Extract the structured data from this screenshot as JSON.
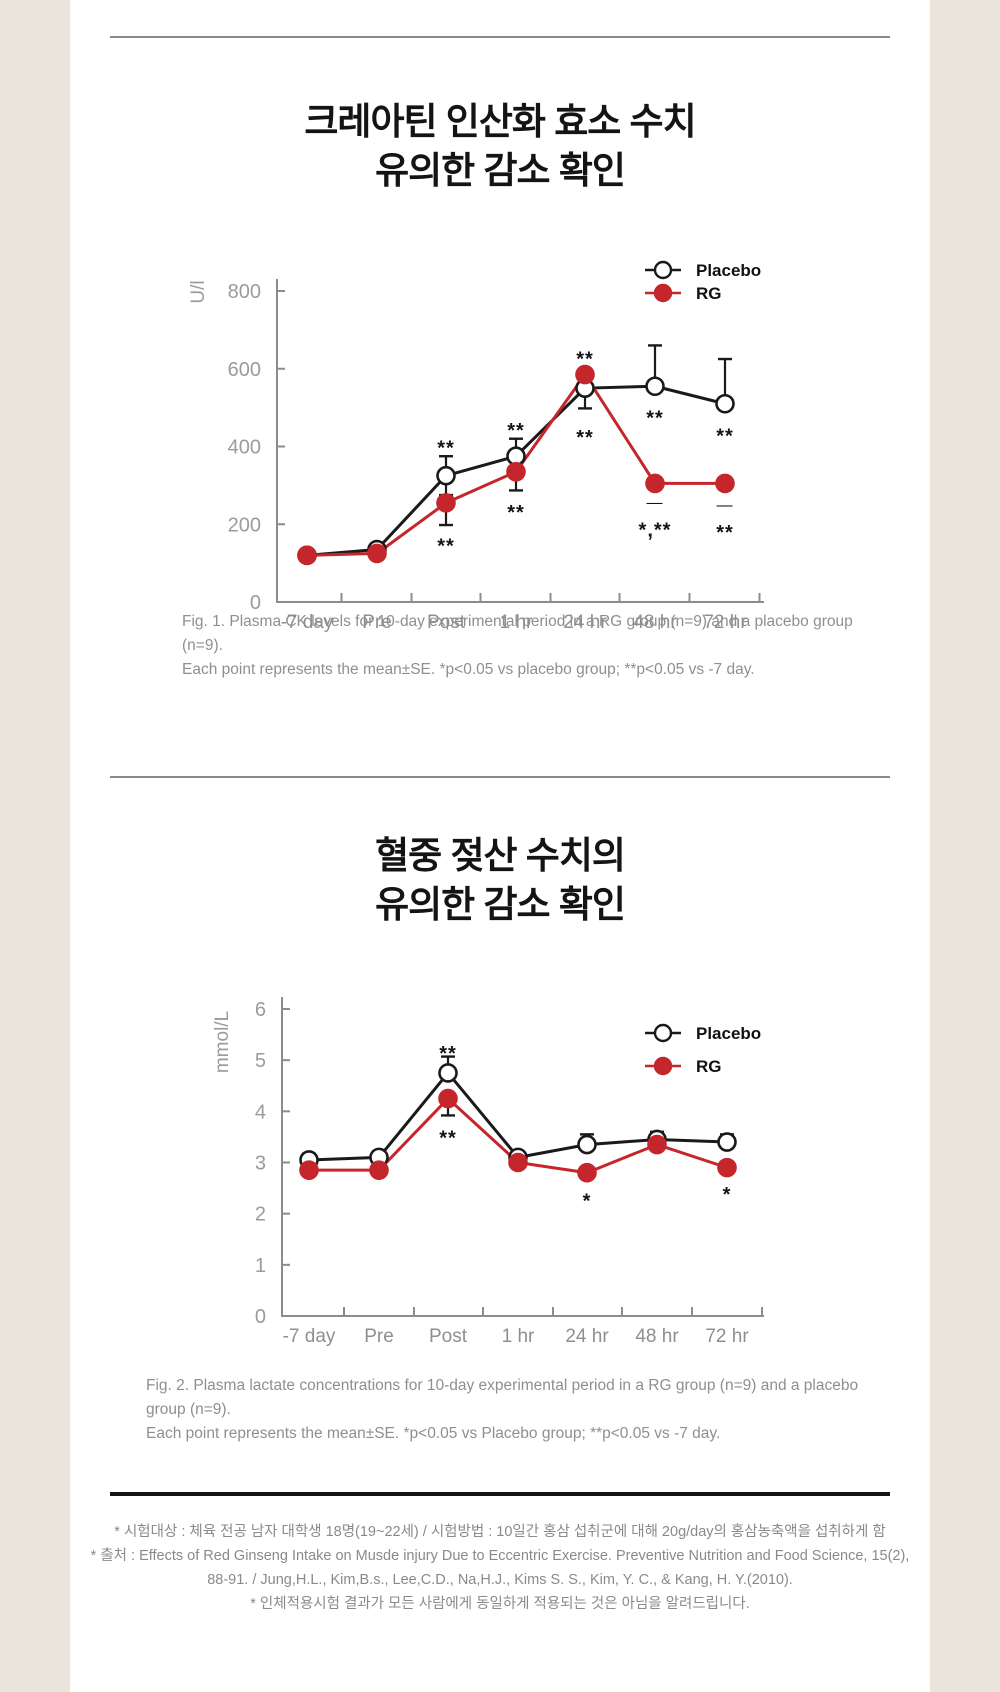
{
  "colors": {
    "background": "#eae5dc",
    "card": "#ffffff",
    "placebo_line": "#1a1a1a",
    "rg_red": "#c5262b",
    "axis": "#8c8c8c",
    "tick_label": "#9b9b9b",
    "caption_text": "#8f8f8f",
    "divider_gray": "#8a8a8a",
    "divider_black": "#161616",
    "annotation": "#141414"
  },
  "legend": {
    "placebo": "Placebo",
    "rg": "RG"
  },
  "section1": {
    "title_line1": "크레아틴 인산화 효소 수치",
    "title_line2": "유의한 감소 확인",
    "caption_line1": "Fig. 1. Plasma CK levels for 10-day experimental period in a RG group (n=9) and a placebo group (n=9).",
    "caption_line2": "Each point represents the mean±SE. *p<0.05 vs placebo group; **p<0.05 vs -7 day."
  },
  "section2": {
    "title_line1": "혈중 젖산 수치의",
    "title_line2": "유의한 감소 확인",
    "caption_line1": "Fig. 2. Plasma lactate concentrations for 10-day experimental period in a RG group (n=9) and a placebo group (n=9).",
    "caption_line2": "Each point represents the mean±SE. *p<0.05 vs Placebo group; **p<0.05 vs -7 day."
  },
  "footnotes": {
    "lines": [
      "* 시험대상 : 체육 전공 남자 대학생 18명(19~22세) / 시험방법 : 10일간 홍삼 섭취군에 대해 20g/day의 홍삼농축액을 섭취하게 함",
      "* 출처 : Effects of Red Ginseng Intake on Musde injury Due to Eccentric Exercise. Preventive Nutrition and Food Science, 15(2),",
      "88-91. / Jung,H.L., Kim,B.s., Lee,C.D., Na,H.J., Kims S. S., Kim, Y. C., & Kang, H. Y.(2010).",
      "* 인체적용시험 결과가 모든 사람에게 동일하게 적용되는 것은 아님을 알려드립니다."
    ]
  },
  "chart_data": [
    {
      "type": "line",
      "name": "plasma-ck",
      "title": "크레아틴 인산화 효소 수치 유의한 감소 확인",
      "ylabel": "U/l",
      "xlabel": "",
      "ylim": [
        0,
        800
      ],
      "yticks": [
        0,
        200,
        400,
        600,
        800
      ],
      "grid": false,
      "legend_position": "top-right",
      "categories": [
        "-7 day",
        "Pre",
        "Post",
        "1 hr",
        "24 hr",
        "48 hr",
        "72 hr"
      ],
      "series": [
        {
          "name": "Placebo",
          "marker": "open",
          "color": "#1a1a1a",
          "values": [
            120,
            135,
            325,
            375,
            550,
            555,
            510
          ],
          "err_up": [
            0,
            0,
            50,
            45,
            0,
            105,
            115
          ],
          "err_down": [
            0,
            0,
            50,
            45,
            52,
            0,
            0
          ]
        },
        {
          "name": "RG",
          "marker": "filled",
          "color": "#c5262b",
          "values": [
            120,
            125,
            255,
            335,
            585,
            305,
            305
          ],
          "err_up": [
            0,
            0,
            0,
            30,
            15,
            0,
            0
          ],
          "err_down": [
            0,
            0,
            57,
            48,
            0,
            0,
            0
          ]
        }
      ],
      "annotations": [
        {
          "x": "Post",
          "xi": 2,
          "text": "**",
          "value": 420
        },
        {
          "x": "Post",
          "xi": 2,
          "text": "**",
          "value": 168
        },
        {
          "x": "1 hr",
          "xi": 3,
          "text": "**",
          "value": 465
        },
        {
          "x": "1 hr",
          "xi": 3,
          "text": "**",
          "value": 255
        },
        {
          "x": "24 hr",
          "xi": 4,
          "text": "**",
          "value": 650
        },
        {
          "x": "24 hr",
          "xi": 4,
          "text": "**",
          "value": 448
        },
        {
          "x": "48 hr",
          "xi": 5,
          "text": "**",
          "value": 498
        },
        {
          "x": "48 hr",
          "xi": 5,
          "text": "—",
          "value": 258
        },
        {
          "x": "48 hr",
          "xi": 5,
          "text": "*,**",
          "value": 210
        },
        {
          "x": "72 hr",
          "xi": 6,
          "text": "**",
          "value": 452
        },
        {
          "x": "72 hr",
          "xi": 6,
          "text": "—",
          "value": 252
        },
        {
          "x": "72 hr",
          "xi": 6,
          "text": "**",
          "value": 203
        }
      ]
    },
    {
      "type": "line",
      "name": "plasma-lactate",
      "title": "혈중 젖산 수치의 유의한 감소 확인",
      "ylabel": "mmol/L",
      "xlabel": "",
      "ylim": [
        0,
        6
      ],
      "yticks": [
        0,
        1,
        2,
        3,
        4,
        5,
        6
      ],
      "grid": false,
      "legend_position": "top-right",
      "categories": [
        "-7 day",
        "Pre",
        "Post",
        "1 hr",
        "24 hr",
        "48 hr",
        "72 hr"
      ],
      "series": [
        {
          "name": "Placebo",
          "marker": "open",
          "color": "#1a1a1a",
          "values": [
            3.05,
            3.1,
            4.75,
            3.1,
            3.35,
            3.45,
            3.4
          ],
          "err_up": [
            0.12,
            0.12,
            0.32,
            0,
            0.2,
            0.15,
            0.15
          ],
          "err_down": [
            0,
            0,
            0,
            0,
            0,
            0,
            0
          ]
        },
        {
          "name": "RG",
          "marker": "filled",
          "color": "#c5262b",
          "values": [
            2.85,
            2.85,
            4.25,
            3.0,
            2.8,
            3.35,
            2.9
          ],
          "err_up": [
            0,
            0,
            0,
            0,
            0,
            0,
            0
          ],
          "err_down": [
            0,
            0,
            0.33,
            0,
            0,
            0,
            0
          ]
        }
      ],
      "annotations": [
        {
          "x": "Post",
          "xi": 2,
          "text": "**",
          "value": 5.32
        },
        {
          "x": "Post",
          "xi": 2,
          "text": "**",
          "value": 3.66
        },
        {
          "x": "24 hr",
          "xi": 4,
          "text": "*",
          "value": 2.43
        },
        {
          "x": "72 hr",
          "xi": 6,
          "text": "*",
          "value": 2.56
        }
      ]
    }
  ]
}
